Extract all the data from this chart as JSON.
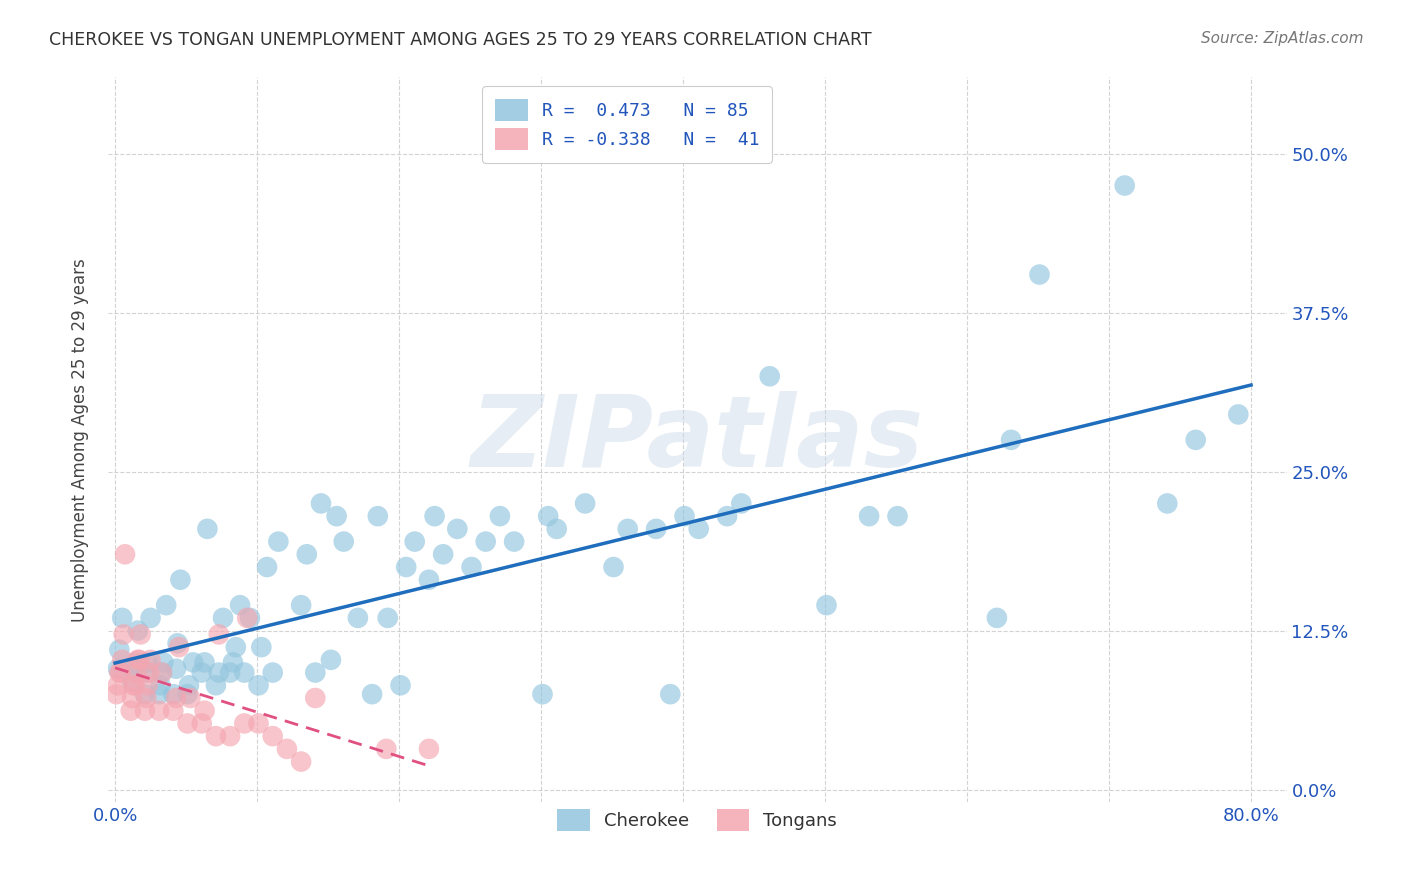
{
  "title": "CHEROKEE VS TONGAN UNEMPLOYMENT AMONG AGES 25 TO 29 YEARS CORRELATION CHART",
  "source": "Source: ZipAtlas.com",
  "ylabel": "Unemployment Among Ages 25 to 29 years",
  "xlim": [
    -0.005,
    0.825
  ],
  "ylim": [
    -0.01,
    0.56
  ],
  "xticks": [
    0.0,
    0.1,
    0.2,
    0.3,
    0.4,
    0.5,
    0.6,
    0.7,
    0.8
  ],
  "xticklabels": [
    "0.0%",
    "",
    "",
    "",
    "",
    "",
    "",
    "",
    "80.0%"
  ],
  "yticks": [
    0.0,
    0.125,
    0.25,
    0.375,
    0.5
  ],
  "yticklabels_right": [
    "0.0%",
    "12.5%",
    "25.0%",
    "37.5%",
    "50.0%"
  ],
  "background_color": "#ffffff",
  "watermark_text": "ZIPatlas",
  "cherokee_color": "#92c5de",
  "tongan_color": "#f4a6b0",
  "cherokee_line_color": "#1f6dbd",
  "tongan_line_color": "#e05080",
  "legend_line1": "R =  0.473   N = 85",
  "legend_line2": "R = -0.338   N =  41",
  "cherokee_x": [
    0.002,
    0.003,
    0.005,
    0.012,
    0.013,
    0.014,
    0.016,
    0.021,
    0.022,
    0.023,
    0.025,
    0.031,
    0.032,
    0.033,
    0.034,
    0.036,
    0.041,
    0.043,
    0.044,
    0.046,
    0.051,
    0.052,
    0.055,
    0.061,
    0.063,
    0.065,
    0.071,
    0.073,
    0.076,
    0.081,
    0.083,
    0.085,
    0.088,
    0.091,
    0.095,
    0.101,
    0.103,
    0.107,
    0.111,
    0.115,
    0.131,
    0.135,
    0.141,
    0.145,
    0.152,
    0.156,
    0.161,
    0.171,
    0.181,
    0.185,
    0.192,
    0.201,
    0.205,
    0.211,
    0.221,
    0.225,
    0.231,
    0.241,
    0.251,
    0.261,
    0.271,
    0.281,
    0.301,
    0.305,
    0.311,
    0.331,
    0.351,
    0.361,
    0.381,
    0.391,
    0.401,
    0.411,
    0.431,
    0.441,
    0.461,
    0.501,
    0.531,
    0.551,
    0.621,
    0.631,
    0.651,
    0.711,
    0.741,
    0.761,
    0.791
  ],
  "cherokee_y": [
    0.095,
    0.11,
    0.135,
    0.085,
    0.095,
    0.1,
    0.125,
    0.075,
    0.092,
    0.1,
    0.135,
    0.075,
    0.082,
    0.092,
    0.1,
    0.145,
    0.075,
    0.095,
    0.115,
    0.165,
    0.075,
    0.082,
    0.1,
    0.092,
    0.1,
    0.205,
    0.082,
    0.092,
    0.135,
    0.092,
    0.1,
    0.112,
    0.145,
    0.092,
    0.135,
    0.082,
    0.112,
    0.175,
    0.092,
    0.195,
    0.145,
    0.185,
    0.092,
    0.225,
    0.102,
    0.215,
    0.195,
    0.135,
    0.075,
    0.215,
    0.135,
    0.082,
    0.175,
    0.195,
    0.165,
    0.215,
    0.185,
    0.205,
    0.175,
    0.195,
    0.215,
    0.195,
    0.075,
    0.215,
    0.205,
    0.225,
    0.175,
    0.205,
    0.205,
    0.075,
    0.215,
    0.205,
    0.215,
    0.225,
    0.325,
    0.145,
    0.215,
    0.215,
    0.135,
    0.275,
    0.405,
    0.475,
    0.225,
    0.275,
    0.295
  ],
  "tongan_x": [
    0.001,
    0.002,
    0.003,
    0.004,
    0.005,
    0.006,
    0.007,
    0.011,
    0.012,
    0.013,
    0.014,
    0.015,
    0.016,
    0.017,
    0.018,
    0.021,
    0.022,
    0.023,
    0.024,
    0.025,
    0.031,
    0.033,
    0.041,
    0.043,
    0.045,
    0.051,
    0.053,
    0.061,
    0.063,
    0.071,
    0.073,
    0.081,
    0.091,
    0.093,
    0.101,
    0.111,
    0.121,
    0.131,
    0.141,
    0.191,
    0.221
  ],
  "tongan_y": [
    0.075,
    0.082,
    0.092,
    0.092,
    0.102,
    0.122,
    0.185,
    0.062,
    0.072,
    0.082,
    0.082,
    0.092,
    0.102,
    0.102,
    0.122,
    0.062,
    0.072,
    0.082,
    0.092,
    0.102,
    0.062,
    0.092,
    0.062,
    0.072,
    0.112,
    0.052,
    0.072,
    0.052,
    0.062,
    0.042,
    0.122,
    0.042,
    0.052,
    0.135,
    0.052,
    0.042,
    0.032,
    0.022,
    0.072,
    0.032,
    0.032
  ]
}
